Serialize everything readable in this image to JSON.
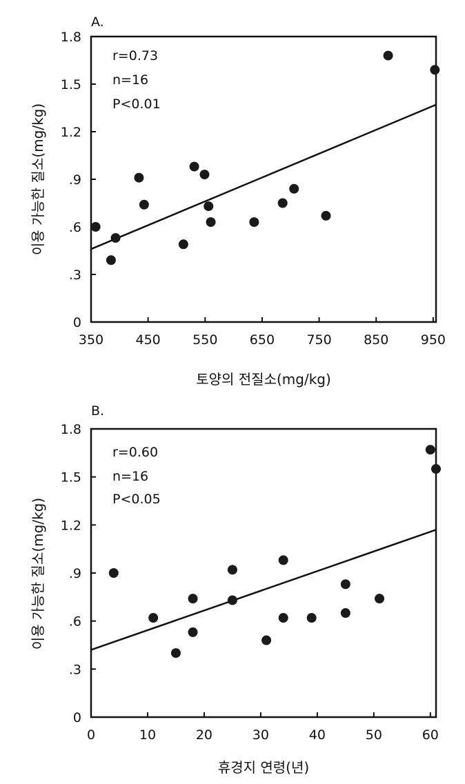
{
  "chart_data": [
    {
      "type": "scatter",
      "panel_label": "A.",
      "xlabel": "토양의 전질소(mg/kg)",
      "ylabel": "이용 가능한 질소(mg/kg)",
      "xlim": [
        350,
        955
      ],
      "ylim": [
        0,
        1.8
      ],
      "xticks": [
        350,
        450,
        550,
        650,
        750,
        850,
        950
      ],
      "xtick_labels": [
        "350",
        "450",
        "550",
        "650",
        "750",
        "850",
        "950"
      ],
      "yticks": [
        0,
        0.3,
        0.6,
        0.9,
        1.2,
        1.5,
        1.8
      ],
      "ytick_labels": [
        "0",
        ".3",
        ".6",
        ".9",
        "1.2",
        "1.5",
        "1.8"
      ],
      "stats": [
        "r=0.73",
        "n=16",
        "P<0.01"
      ],
      "points": [
        {
          "x": 358,
          "y": 0.6
        },
        {
          "x": 385,
          "y": 0.39
        },
        {
          "x": 393,
          "y": 0.53
        },
        {
          "x": 434,
          "y": 0.91
        },
        {
          "x": 443,
          "y": 0.74
        },
        {
          "x": 512,
          "y": 0.49
        },
        {
          "x": 531,
          "y": 0.98
        },
        {
          "x": 549,
          "y": 0.93
        },
        {
          "x": 556,
          "y": 0.73
        },
        {
          "x": 560,
          "y": 0.63
        },
        {
          "x": 636,
          "y": 0.63
        },
        {
          "x": 686,
          "y": 0.75
        },
        {
          "x": 706,
          "y": 0.84
        },
        {
          "x": 762,
          "y": 0.67
        },
        {
          "x": 871,
          "y": 1.68
        },
        {
          "x": 953,
          "y": 1.59
        }
      ],
      "fit_line": {
        "x": [
          350,
          955
        ],
        "y": [
          0.46,
          1.37
        ]
      }
    },
    {
      "type": "scatter",
      "panel_label": "B.",
      "xlabel": "휴경지 연령(년)",
      "ylabel": "이용 가능한 질소(mg/kg)",
      "xlim": [
        0,
        61
      ],
      "ylim": [
        0,
        1.8
      ],
      "xticks": [
        0,
        10,
        20,
        30,
        40,
        50,
        60
      ],
      "xtick_labels": [
        "0",
        "10",
        "20",
        "30",
        "40",
        "50",
        "60"
      ],
      "yticks": [
        0,
        0.3,
        0.6,
        0.9,
        1.2,
        1.5,
        1.8
      ],
      "ytick_labels": [
        "0",
        ".3",
        ".6",
        ".9",
        "1.2",
        "1.5",
        "1.8"
      ],
      "stats": [
        "r=0.60",
        "n=16",
        "P<0.05"
      ],
      "points": [
        {
          "x": 4,
          "y": 0.9
        },
        {
          "x": 11,
          "y": 0.62
        },
        {
          "x": 15,
          "y": 0.4
        },
        {
          "x": 18,
          "y": 0.74
        },
        {
          "x": 18,
          "y": 0.53
        },
        {
          "x": 25,
          "y": 0.92
        },
        {
          "x": 25,
          "y": 0.73
        },
        {
          "x": 31,
          "y": 0.48
        },
        {
          "x": 34,
          "y": 0.98
        },
        {
          "x": 34,
          "y": 0.62
        },
        {
          "x": 39,
          "y": 0.62
        },
        {
          "x": 45,
          "y": 0.83
        },
        {
          "x": 45,
          "y": 0.65
        },
        {
          "x": 51,
          "y": 0.74
        },
        {
          "x": 60,
          "y": 1.67
        },
        {
          "x": 61,
          "y": 1.55
        }
      ],
      "fit_line": {
        "x": [
          0,
          61
        ],
        "y": [
          0.42,
          1.17
        ]
      }
    }
  ]
}
